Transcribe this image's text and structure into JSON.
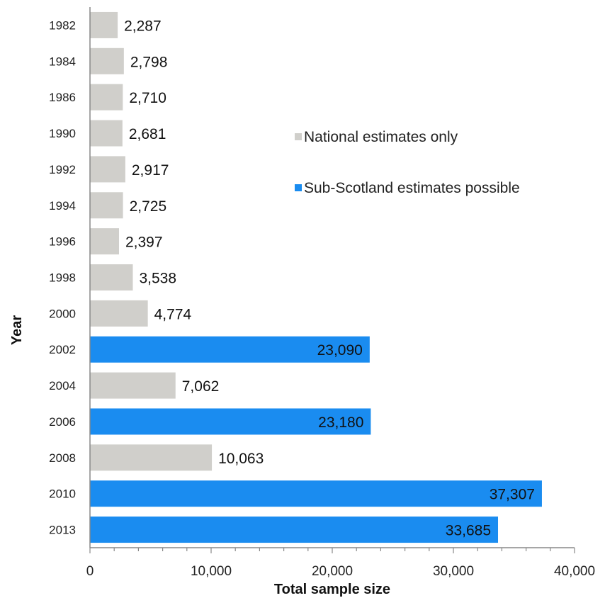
{
  "chart_data": {
    "type": "bar",
    "orientation": "horizontal",
    "xlabel": "Total sample size",
    "ylabel": "Year",
    "xlim": [
      0,
      40000
    ],
    "x_ticks": [
      "0",
      "10,000",
      "20,000",
      "30,000",
      "40,000"
    ],
    "x_tick_values": [
      0,
      10000,
      20000,
      30000,
      40000
    ],
    "grid": false,
    "legend_position": "right-center",
    "categories": [
      "1982",
      "1984",
      "1986",
      "1990",
      "1992",
      "1994",
      "1996",
      "1998",
      "2000",
      "2002",
      "2004",
      "2006",
      "2008",
      "2010",
      "2013"
    ],
    "values": [
      2287,
      2798,
      2710,
      2681,
      2917,
      2725,
      2397,
      3538,
      4774,
      23090,
      7062,
      23180,
      10063,
      37307,
      33685
    ],
    "value_labels": [
      "2,287",
      "2,798",
      "2,710",
      "2,681",
      "2,917",
      "2,725",
      "2,397",
      "3,538",
      "4,774",
      "23,090",
      "7,062",
      "23,180",
      "10,063",
      "37,307",
      "33,685"
    ],
    "bar_series": [
      "national",
      "national",
      "national",
      "national",
      "national",
      "national",
      "national",
      "national",
      "national",
      "sub",
      "national",
      "sub",
      "national",
      "sub",
      "sub"
    ],
    "series": [
      {
        "key": "national",
        "name": "National estimates only",
        "color": "#d0cfcb"
      },
      {
        "key": "sub",
        "name": "Sub-Scotland estimates possible",
        "color": "#1a8cf0"
      }
    ]
  }
}
